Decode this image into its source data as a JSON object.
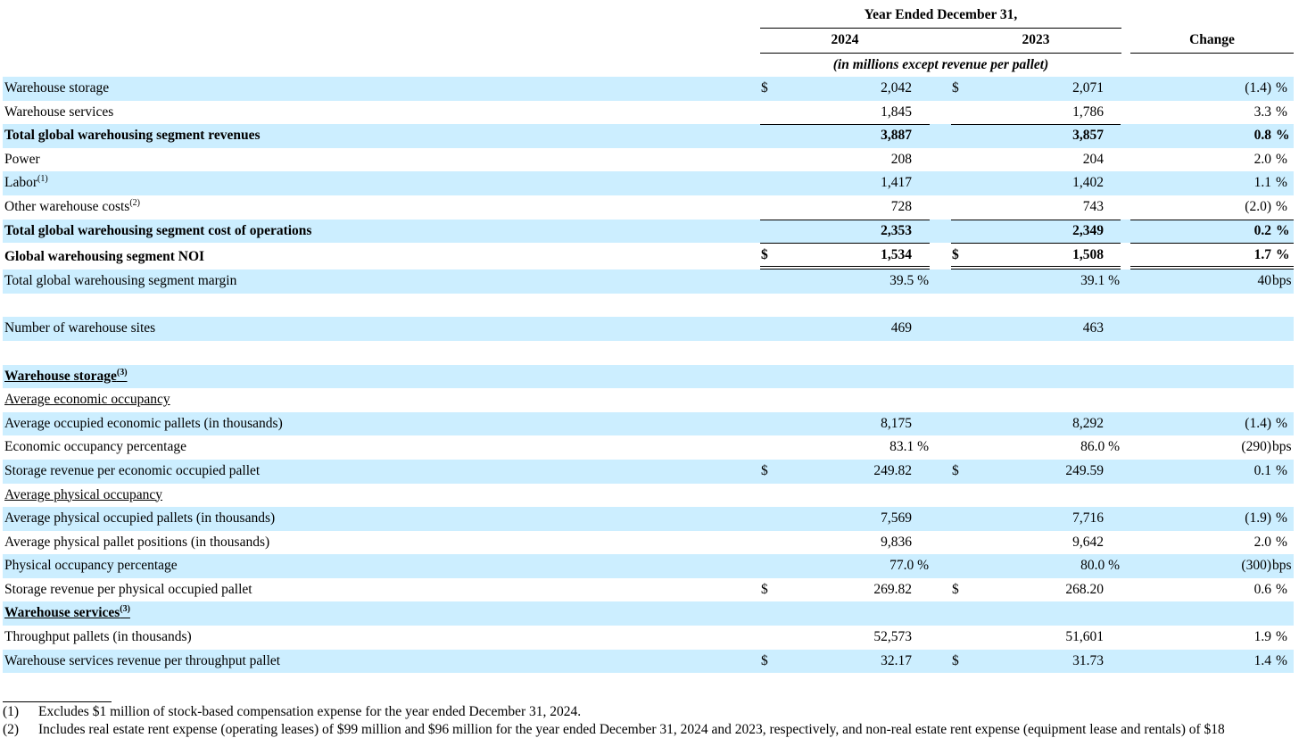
{
  "header": {
    "year_ended": "Year Ended December 31,",
    "col_2024": "2024",
    "col_2023": "2023",
    "col_change": "Change",
    "subtitle": "(in millions except revenue per pallet)"
  },
  "rows": [
    {
      "label": "Warehouse storage",
      "d1": "$",
      "v1": "2,042",
      "d2": "$",
      "v2": "2,071",
      "chg": "(1.4)",
      "unit": "%"
    },
    {
      "label": "Warehouse services",
      "v1": "1,845",
      "v2": "1,786",
      "chg": "3.3",
      "unit": "%"
    },
    {
      "label": "Total global warehousing segment revenues",
      "v1": "3,887",
      "v2": "3,857",
      "chg": "0.8",
      "unit": "%"
    },
    {
      "label": "Power",
      "v1": "208",
      "v2": "204",
      "chg": "2.0",
      "unit": "%"
    },
    {
      "label": "Labor",
      "sup": "(1)",
      "v1": "1,417",
      "v2": "1,402",
      "chg": "1.1",
      "unit": "%"
    },
    {
      "label": "Other warehouse costs",
      "sup": "(2)",
      "v1": "728",
      "v2": "743",
      "chg": "(2.0)",
      "unit": "%"
    },
    {
      "label": "Total global warehousing segment cost of operations",
      "v1": "2,353",
      "v2": "2,349",
      "chg": "0.2",
      "unit": "%"
    },
    {
      "label": "Global warehousing segment NOI",
      "d1": "$",
      "v1": "1,534",
      "d2": "$",
      "v2": "1,508",
      "chg": "1.7",
      "unit": "%"
    },
    {
      "label": "Total global warehousing segment margin",
      "v1": "39.5 %",
      "v2": "39.1 %",
      "chg": "40",
      "unit": "bps"
    },
    {
      "label": "Number of warehouse sites",
      "v1": "469",
      "v2": "463"
    },
    {
      "label": "Warehouse storage",
      "sup": "(3)"
    },
    {
      "label": "Average economic occupancy"
    },
    {
      "label": "Average occupied economic pallets (in thousands)",
      "v1": "8,175",
      "v2": "8,292",
      "chg": "(1.4)",
      "unit": "%"
    },
    {
      "label": "Economic occupancy percentage",
      "v1": "83.1 %",
      "v2": "86.0 %",
      "chg": "(290)",
      "unit": "bps"
    },
    {
      "label": "Storage revenue per economic occupied pallet",
      "d1": "$",
      "v1": "249.82",
      "d2": "$",
      "v2": "249.59",
      "chg": "0.1",
      "unit": "%"
    },
    {
      "label": "Average physical occupancy"
    },
    {
      "label": "Average physical occupied pallets (in thousands)",
      "v1": "7,569",
      "v2": "7,716",
      "chg": "(1.9)",
      "unit": "%"
    },
    {
      "label": "Average physical pallet positions (in thousands)",
      "v1": "9,836",
      "v2": "9,642",
      "chg": "2.0",
      "unit": "%"
    },
    {
      "label": "Physical occupancy percentage",
      "v1": "77.0 %",
      "v2": "80.0 %",
      "chg": "(300)",
      "unit": "bps"
    },
    {
      "label": "Storage revenue per physical occupied pallet",
      "d1": "$",
      "v1": "269.82",
      "d2": "$",
      "v2": "268.20",
      "chg": "0.6",
      "unit": "%"
    },
    {
      "label": "Warehouse services",
      "sup": "(3)"
    },
    {
      "label": "Throughput pallets (in thousands)",
      "v1": "52,573",
      "v2": "51,601",
      "chg": "1.9",
      "unit": "%"
    },
    {
      "label": "Warehouse services revenue per throughput pallet",
      "d1": "$",
      "v1": "32.17",
      "d2": "$",
      "v2": "31.73",
      "chg": "1.4",
      "unit": "%"
    }
  ],
  "footnotes": [
    {
      "key": "(1)",
      "text": "Excludes $1 million of stock-based compensation expense for the year ended December 31, 2024."
    },
    {
      "key": "(2)",
      "text": "Includes real estate rent expense (operating leases) of $99 million and $96 million for the year ended December 31, 2024 and 2023, respectively, and non-real estate rent expense (equipment lease and rentals) of $18"
    }
  ],
  "colors": {
    "band": "#cceeff"
  }
}
